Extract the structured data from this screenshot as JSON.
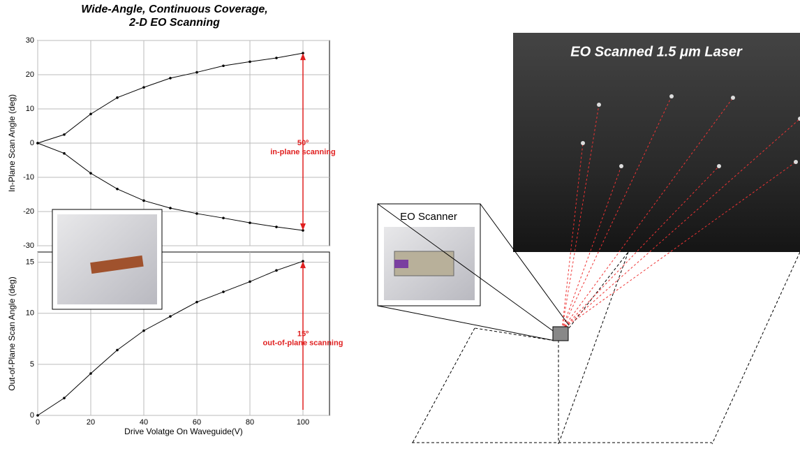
{
  "chart_data": [
    {
      "type": "line",
      "title": [
        "Wide-Angle, Continuous Coverage,",
        "2-D EO Scanning"
      ],
      "y_label": "In-Plane Scan Angle (deg)",
      "x": [
        0,
        10,
        20,
        30,
        40,
        50,
        60,
        70,
        80,
        90,
        100
      ],
      "series": [
        {
          "color": "#000000",
          "values": [
            0,
            2.5,
            8.5,
            13.3,
            16.3,
            19,
            20.7,
            22.6,
            23.8,
            24.9,
            26.3
          ]
        },
        {
          "color": "#000000",
          "values": [
            0,
            -3,
            -8.8,
            -13.4,
            -16.8,
            -19,
            -20.6,
            -21.9,
            -23.3,
            -24.5,
            -25.5
          ]
        }
      ],
      "xlim": [
        0,
        110
      ],
      "ylim": [
        -30,
        30
      ],
      "yticks": [
        -30,
        -20,
        -10,
        0,
        10,
        20,
        30
      ],
      "grid": true,
      "annotations": [
        "50º",
        "in-plane scanning"
      ]
    },
    {
      "type": "line",
      "x_label": "Drive Volatge On Waveguide(V)",
      "y_label": "Out-of-Plane Scan Angle (deg)",
      "x": [
        0,
        10,
        20,
        30,
        40,
        50,
        60,
        70,
        80,
        90,
        100
      ],
      "series": [
        {
          "color": "#000000",
          "values": [
            0,
            1.7,
            4.1,
            6.4,
            8.3,
            9.7,
            11.1,
            12.1,
            13.1,
            14.2,
            15.1
          ]
        }
      ],
      "xlim": [
        0,
        110
      ],
      "xticks": [
        0,
        20,
        40,
        60,
        80,
        100
      ],
      "ylim": [
        0,
        16
      ],
      "yticks": [
        0,
        5,
        10,
        15
      ],
      "grid": true,
      "annotations": [
        "15º",
        "out-of-plane scanning"
      ]
    }
  ],
  "diagram": {
    "scanner_label": "EO Scanner",
    "image_title": "EO Scanned 1.5 μm Laser"
  }
}
